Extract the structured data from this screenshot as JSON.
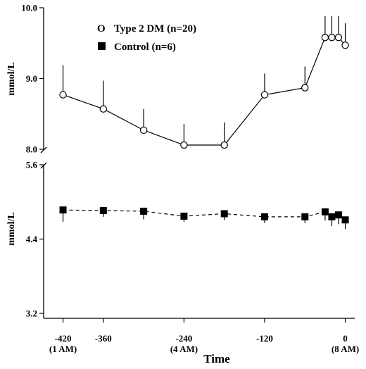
{
  "chart_data": {
    "type": "line",
    "xlabel": "Time",
    "x_ticks": [
      {
        "value": -420,
        "label": "-420",
        "sub": "(1 AM)"
      },
      {
        "value": -360,
        "label": "-360",
        "sub": ""
      },
      {
        "value": -240,
        "label": "-240",
        "sub": "(4 AM)"
      },
      {
        "value": -120,
        "label": "-120",
        "sub": ""
      },
      {
        "value": 0,
        "label": "0",
        "sub": "(8 AM)"
      }
    ],
    "xlim": [
      -430,
      12
    ],
    "panels": [
      {
        "ylabel": "mmol/L",
        "ylim": [
          8.0,
          10.0
        ],
        "yticks": [
          {
            "value": 8.0,
            "label": "8.0"
          },
          {
            "value": 9.0,
            "label": "9.0"
          },
          {
            "value": 10.0,
            "label": "10.0"
          }
        ],
        "series": [
          {
            "name": "Type 2 DM (n=20)",
            "marker": "open-circle",
            "line": "solid",
            "x": [
              -420,
              -360,
              -300,
              -240,
              -180,
              -120,
              -60,
              -30,
              -20,
              -10,
              0
            ],
            "y": [
              8.77,
              8.57,
              8.27,
              8.06,
              8.06,
              8.77,
              8.87,
              9.58,
              9.58,
              9.58,
              9.47
            ],
            "error_upper": [
              9.19,
              8.97,
              8.57,
              8.36,
              8.38,
              9.07,
              9.17,
              9.88,
              9.88,
              9.88,
              9.78
            ]
          }
        ]
      },
      {
        "ylabel": "mmol/L",
        "ylim": [
          3.2,
          5.6
        ],
        "yticks": [
          {
            "value": 3.2,
            "label": "3.2"
          },
          {
            "value": 4.4,
            "label": "4.4"
          },
          {
            "value": 5.6,
            "label": "5.6"
          }
        ],
        "series": [
          {
            "name": "Control (n=6)",
            "marker": "filled-square",
            "line": "dashed",
            "x": [
              -420,
              -360,
              -300,
              -240,
              -180,
              -120,
              -60,
              -30,
              -20,
              -10,
              0
            ],
            "y": [
              4.87,
              4.86,
              4.85,
              4.77,
              4.81,
              4.76,
              4.76,
              4.84,
              4.76,
              4.79,
              4.71
            ],
            "error_lower": [
              4.68,
              4.76,
              4.72,
              4.68,
              4.71,
              4.66,
              4.66,
              4.7,
              4.61,
              4.64,
              4.56
            ]
          }
        ]
      }
    ],
    "legend": {
      "position": "top-left",
      "entries": [
        {
          "symbol": "O",
          "label": "Type 2 DM (n=20)"
        },
        {
          "symbol": "■",
          "label": "Control (n=6)"
        }
      ]
    },
    "grid": false
  }
}
